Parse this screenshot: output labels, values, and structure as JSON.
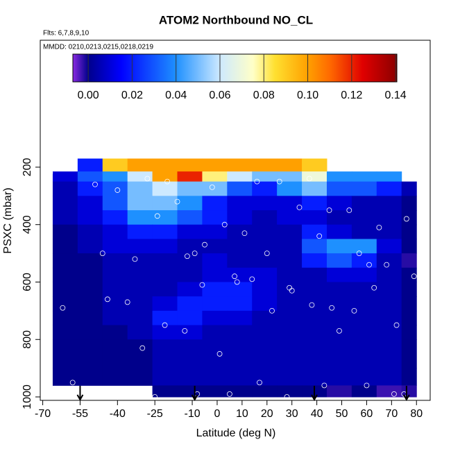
{
  "chart_data": {
    "type": "heatmap",
    "title": "ATOM2 Northbound NO_CL",
    "subtitle": "Flts: 6,7,8,9,10",
    "annotation": "MMDD: 0210,0213,0215,0218,0219",
    "x_label": "Latitude (deg N)",
    "y_label": "PSXC (mbar)",
    "xlim": [
      -71,
      85.5
    ],
    "ylim": [
      1012,
      -242
    ],
    "xticks": [
      -70,
      -55,
      -40,
      -25,
      -10,
      0,
      10,
      20,
      30,
      40,
      50,
      60,
      70,
      80
    ],
    "yticks": [
      200,
      400,
      600,
      800,
      1000
    ],
    "clim": [
      -0.007,
      0.1406
    ],
    "cticks": [
      {
        "value": 0,
        "label": "0.00"
      },
      {
        "value": 0.02,
        "label": "0.02"
      },
      {
        "value": 0.04,
        "label": "0.04"
      },
      {
        "value": 0.06,
        "label": "0.06"
      },
      {
        "value": 0.08,
        "label": "0.08"
      },
      {
        "value": 0.1,
        "label": "0.10"
      },
      {
        "value": 0.12,
        "label": "0.12"
      },
      {
        "value": 0.14,
        "label": "0.14"
      }
    ],
    "colorscale": [
      [
        -0.007,
        "#8a2be2"
      ],
      [
        0,
        "#00008b"
      ],
      [
        0.015,
        "#0000ff"
      ],
      [
        0.04,
        "#1e90ff"
      ],
      [
        0.06,
        "#cde9ff"
      ],
      [
        0.075,
        "#ffffc8"
      ],
      [
        0.085,
        "#ffe030"
      ],
      [
        0.1,
        "#ffa000"
      ],
      [
        0.11,
        "#ff6a00"
      ],
      [
        0.125,
        "#e00000"
      ],
      [
        0.1406,
        "#8b0000"
      ]
    ],
    "x_edges": [
      -66,
      -56,
      -46,
      -36,
      -26,
      -16,
      -6,
      4,
      14,
      24,
      34,
      44,
      54,
      64,
      74,
      80
    ],
    "y_edges": [
      170,
      215,
      250,
      300,
      350,
      400,
      450,
      500,
      550,
      600,
      650,
      700,
      750,
      800,
      900,
      960,
      1000
    ],
    "z": [
      [
        null,
        0.02,
        0.09,
        0.1,
        0.1,
        0.1,
        0.1,
        0.1,
        0.1,
        0.1,
        0.09,
        null,
        null,
        null,
        null
      ],
      [
        0.01,
        0.03,
        0.04,
        0.06,
        0.1,
        0.12,
        0.08,
        0.06,
        0.05,
        0.05,
        0.07,
        0.04,
        0.04,
        0.04,
        null
      ],
      [
        0.005,
        0.02,
        0.03,
        0.05,
        0.06,
        0.05,
        0.05,
        0.03,
        0.02,
        0.04,
        0.05,
        0.03,
        0.03,
        0.02,
        0.005
      ],
      [
        0.005,
        0.01,
        0.03,
        0.05,
        0.05,
        0.04,
        0.02,
        0.01,
        0.01,
        0.01,
        0.02,
        0.01,
        0.005,
        0.005,
        0
      ],
      [
        0.005,
        0.01,
        0.02,
        0.04,
        0.04,
        0.03,
        0.02,
        0.01,
        0.005,
        0.01,
        0.01,
        0.005,
        0.005,
        0.005,
        0
      ],
      [
        0,
        0.005,
        0.01,
        0.02,
        0.02,
        0.01,
        0.01,
        0.005,
        0.005,
        0.005,
        0.02,
        0.01,
        0.005,
        0.005,
        0
      ],
      [
        0,
        0.005,
        0.01,
        0.01,
        0.01,
        0.005,
        0.005,
        0.005,
        0.005,
        0.005,
        0.03,
        0.04,
        0.04,
        0.01,
        0
      ],
      [
        0,
        0,
        0.005,
        0.005,
        0.005,
        0.005,
        0.01,
        0.005,
        0.005,
        0.005,
        0.02,
        0.03,
        0.02,
        0.005,
        -0.002
      ],
      [
        0,
        0,
        0.005,
        0.005,
        0.005,
        0.005,
        0.01,
        0.01,
        0.01,
        0.005,
        0.005,
        0.01,
        0.01,
        0.005,
        0
      ],
      [
        0,
        0,
        0.005,
        0.005,
        0.005,
        0.01,
        0.02,
        0.02,
        0.01,
        0.005,
        0.005,
        0.005,
        0.005,
        0.005,
        0
      ],
      [
        0,
        0,
        0.005,
        0.005,
        0.01,
        0.02,
        0.02,
        0.02,
        0.01,
        0.005,
        0.005,
        0.005,
        0.005,
        0.005,
        0
      ],
      [
        0,
        0,
        0.005,
        0.005,
        0.02,
        0.02,
        0.01,
        0.01,
        0.005,
        0.005,
        0.005,
        0.005,
        0.005,
        0.005,
        0
      ],
      [
        0,
        0,
        0,
        0.005,
        0.01,
        0.01,
        0.005,
        0.005,
        0.005,
        0.005,
        0.005,
        0.005,
        0.005,
        0.005,
        0
      ],
      [
        0,
        0,
        0,
        0,
        0.005,
        0.005,
        0.005,
        0.005,
        0.005,
        0.005,
        0.005,
        0.005,
        0.005,
        0.005,
        0
      ],
      [
        0,
        0,
        0,
        0,
        0.005,
        0.005,
        0.005,
        0.005,
        0.005,
        0.005,
        0.005,
        0.005,
        0.005,
        0.005,
        0
      ],
      [
        null,
        null,
        null,
        null,
        0,
        0,
        0,
        0,
        0,
        0,
        0,
        -0.002,
        0,
        -0.003,
        -0.002
      ]
    ],
    "points": {
      "x": [
        -67,
        -60,
        -49,
        -46,
        -40,
        -33,
        -28,
        -24,
        -20,
        -16,
        -12,
        -9,
        -5,
        -2,
        3,
        7,
        11,
        16,
        20,
        25,
        29,
        33,
        37,
        41,
        45,
        49,
        53,
        57,
        61,
        65,
        68,
        72,
        76,
        -62,
        -44,
        -30,
        -21,
        -13,
        -6,
        1,
        8,
        14,
        22,
        30,
        38,
        46,
        55,
        63,
        71,
        79,
        -58,
        -36,
        -25,
        -8,
        5,
        17,
        28,
        43,
        60,
        75
      ],
      "y": [
        220,
        200,
        260,
        500,
        280,
        520,
        240,
        370,
        250,
        320,
        510,
        500,
        470,
        270,
        400,
        580,
        430,
        250,
        500,
        250,
        620,
        340,
        240,
        440,
        350,
        770,
        350,
        500,
        540,
        410,
        540,
        750,
        380,
        690,
        660,
        830,
        750,
        770,
        610,
        850,
        600,
        590,
        700,
        630,
        680,
        690,
        700,
        620,
        990,
        580,
        950,
        670,
        1000,
        990,
        990,
        950,
        1000,
        960,
        960,
        990
      ]
    },
    "arrows": [
      -55,
      -9,
      39,
      76
    ]
  }
}
